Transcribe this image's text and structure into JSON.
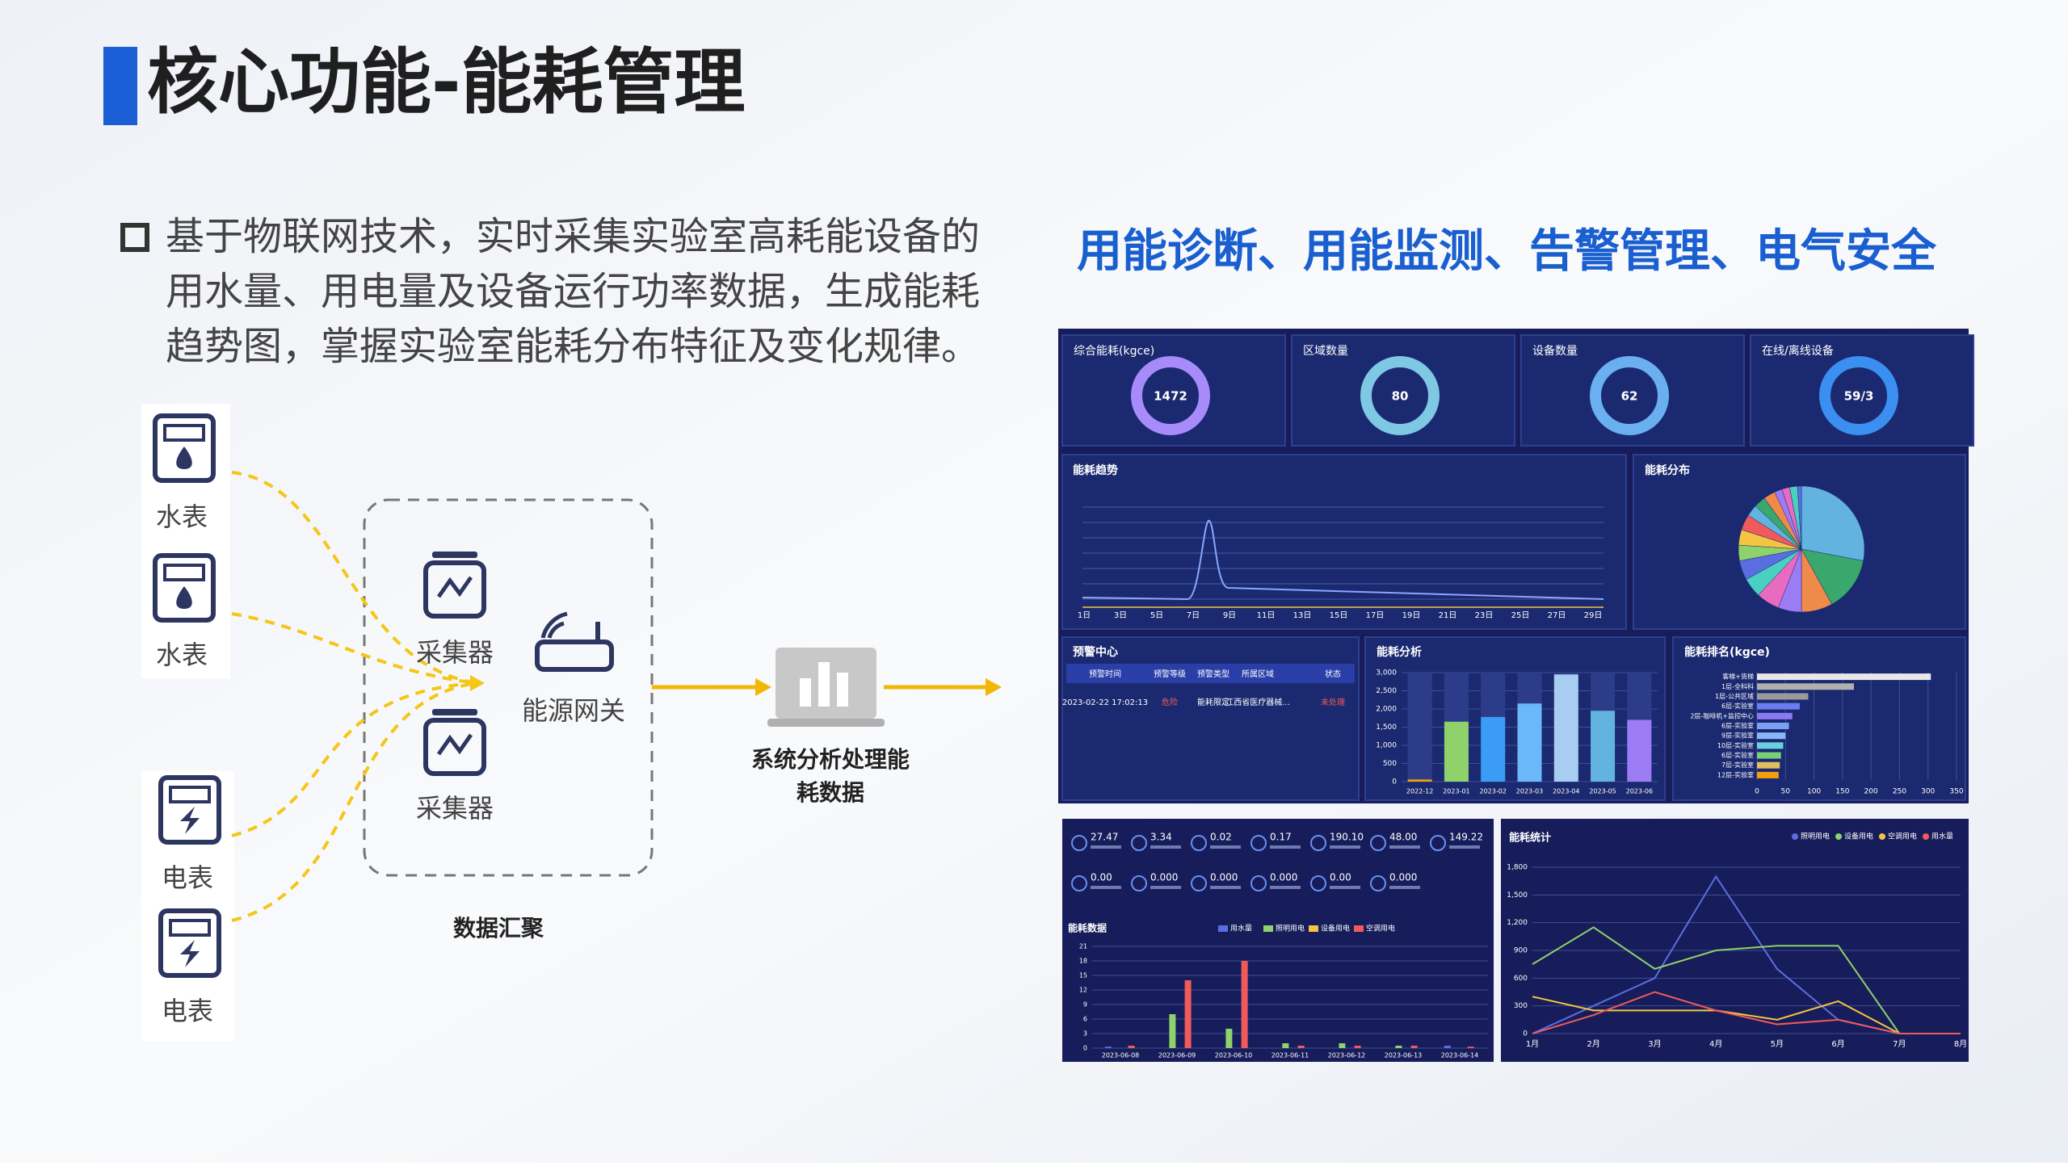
{
  "header": {
    "title": "核心功能-能耗管理"
  },
  "intro": {
    "lines": [
      "基于物联网技术，实时采集实验室高耗能设备的",
      "用水量、用电量及设备运行功率数据，生成能耗",
      "趋势图，掌握实验室能耗分布特征及变化规律。"
    ]
  },
  "flow": {
    "water_meters": [
      "水表",
      "水表"
    ],
    "power_meters": [
      "电表",
      "电表"
    ],
    "collectors": [
      "采集器",
      "采集器"
    ],
    "gateway": "能源网关",
    "group_label": "数据汇聚",
    "system_lines": [
      "系统分析处理能",
      "耗数据"
    ]
  },
  "dashboard": {
    "heading": "用能诊断、用能监测、告警管理、电气安全",
    "kpis": [
      {
        "label": "综合能耗(kgce)",
        "value": 1472
      },
      {
        "label": "区域数量",
        "value": 80
      },
      {
        "label": "设备数量",
        "value": 62
      },
      {
        "label": "在线/离线设备",
        "value": "59/3"
      }
    ],
    "trend": {
      "title": "能耗趋势",
      "x_labels": [
        "1日",
        "3日",
        "5日",
        "7日",
        "9日",
        "11日",
        "13日",
        "15日",
        "17日",
        "19日",
        "21日",
        "23日",
        "25日",
        "27日",
        "29日"
      ]
    },
    "distribution": {
      "title": "能耗分布"
    },
    "alerts": {
      "title": "预警中心",
      "columns": [
        "预警时间",
        "预警等级",
        "预警类型",
        "所属区域",
        "状态"
      ],
      "rows": [
        [
          "2023-02-22 17:02:13",
          "危险",
          "能耗限定",
          "江西省医疗器械...",
          "未处理"
        ]
      ]
    },
    "analysis": {
      "type": "bar",
      "title": "能耗分析",
      "categories": [
        "2022-12",
        "2023-01",
        "2023-02",
        "2023-03",
        "2023-04",
        "2023-05",
        "2023-06"
      ],
      "values": [
        60,
        1650,
        1780,
        2150,
        2950,
        1950,
        1700
      ],
      "colors": [
        "#f59e0b",
        "#8fd16a",
        "#3b9cf5",
        "#6ab8f7",
        "#a9cdf0",
        "#63b3e0",
        "#9b7cf5"
      ],
      "ylim": [
        0,
        3000
      ],
      "yticks": [
        0,
        500,
        {
          "value": 1000,
          "label": "1,000"
        },
        {
          "value": 1500,
          "label": "1,500"
        },
        {
          "value": 2000,
          "label": "2,000"
        },
        {
          "value": 2500,
          "label": "2,500"
        },
        {
          "value": 3000,
          "label": "3,000"
        }
      ]
    },
    "ranking": {
      "type": "bar",
      "title": "能耗排名(kgce)",
      "categories": [
        "客梯+货梯",
        "1层-全科科",
        "1层-公共区域",
        "6层-实验室",
        "2层-咖啡机+监控中心",
        "6层-实验室",
        "9层-实验室",
        "10层-实验室",
        "6层-实验室",
        "7层-实验室",
        "12层-实验室"
      ],
      "values": [
        305,
        170,
        90,
        75,
        62,
        56,
        50,
        46,
        42,
        40,
        38
      ],
      "colors": [
        "#e8e8e8",
        "#b0b0b0",
        "#9a9a9a",
        "#6a7cf0",
        "#8a7cf0",
        "#7aa0f5",
        "#8ab8f5",
        "#6ad0e0",
        "#7ad07a",
        "#e0c060",
        "#f59e0b"
      ],
      "xlim": [
        0,
        350
      ],
      "xticks": [
        0,
        50,
        100,
        150,
        200,
        250,
        300,
        350
      ]
    },
    "metrics": {
      "values": [
        "27.47",
        "3.34",
        "0.02",
        "0.17",
        "190.10",
        "48.00",
        "149.22",
        "0.00",
        "0.000",
        "0.000",
        "0.000",
        "0.00",
        "0.000"
      ]
    },
    "daily": {
      "type": "bar",
      "title": "能耗数据",
      "categories": [
        "2023-06-08",
        "2023-06-09",
        "2023-06-10",
        "2023-06-11",
        "2023-06-12",
        "2023-06-13",
        "2023-06-14"
      ],
      "series": [
        {
          "name": "用水量",
          "color": "#5b6ee1",
          "values": [
            0.3,
            0,
            0,
            0,
            0,
            0,
            0.5
          ]
        },
        {
          "name": "照明用电",
          "color": "#8fd16a",
          "values": [
            0,
            7,
            4,
            1,
            1,
            0.5,
            0
          ]
        },
        {
          "name": "设备用电",
          "color": "#f5c542",
          "values": [
            0,
            0,
            0,
            0,
            0,
            0,
            0
          ]
        },
        {
          "name": "空调用电",
          "color": "#f05a5a",
          "values": [
            0.5,
            14,
            18,
            0.5,
            0.5,
            0.5,
            0.3
          ]
        }
      ],
      "ylim": [
        0,
        21
      ],
      "yticks": [
        0,
        3,
        6,
        9,
        12,
        15,
        18,
        21
      ]
    },
    "stats": {
      "type": "line",
      "title": "能耗统计",
      "categories": [
        "1月",
        "2月",
        "3月",
        "4月",
        "5月",
        "6月",
        "7月",
        "8月"
      ],
      "series": [
        {
          "name": "照明用电",
          "color": "#5b6ee1",
          "values": [
            0,
            300,
            600,
            1700,
            700,
            150,
            0,
            0
          ]
        },
        {
          "name": "设备用电",
          "color": "#8fd16a",
          "values": [
            750,
            1150,
            700,
            900,
            950,
            950,
            0,
            0
          ]
        },
        {
          "name": "空调用电",
          "color": "#f5c542",
          "values": [
            400,
            250,
            250,
            250,
            150,
            350,
            0,
            0
          ]
        },
        {
          "name": "用水量",
          "color": "#f05a5a",
          "values": [
            0,
            200,
            450,
            250,
            100,
            150,
            0,
            0
          ]
        }
      ],
      "ylim": [
        0,
        1800
      ],
      "yticks": [
        0,
        300,
        600,
        900,
        {
          "value": 1200,
          "label": "1,200"
        },
        {
          "value": 1500,
          "label": "1,500"
        },
        {
          "value": 1800,
          "label": "1,800"
        }
      ]
    }
  }
}
